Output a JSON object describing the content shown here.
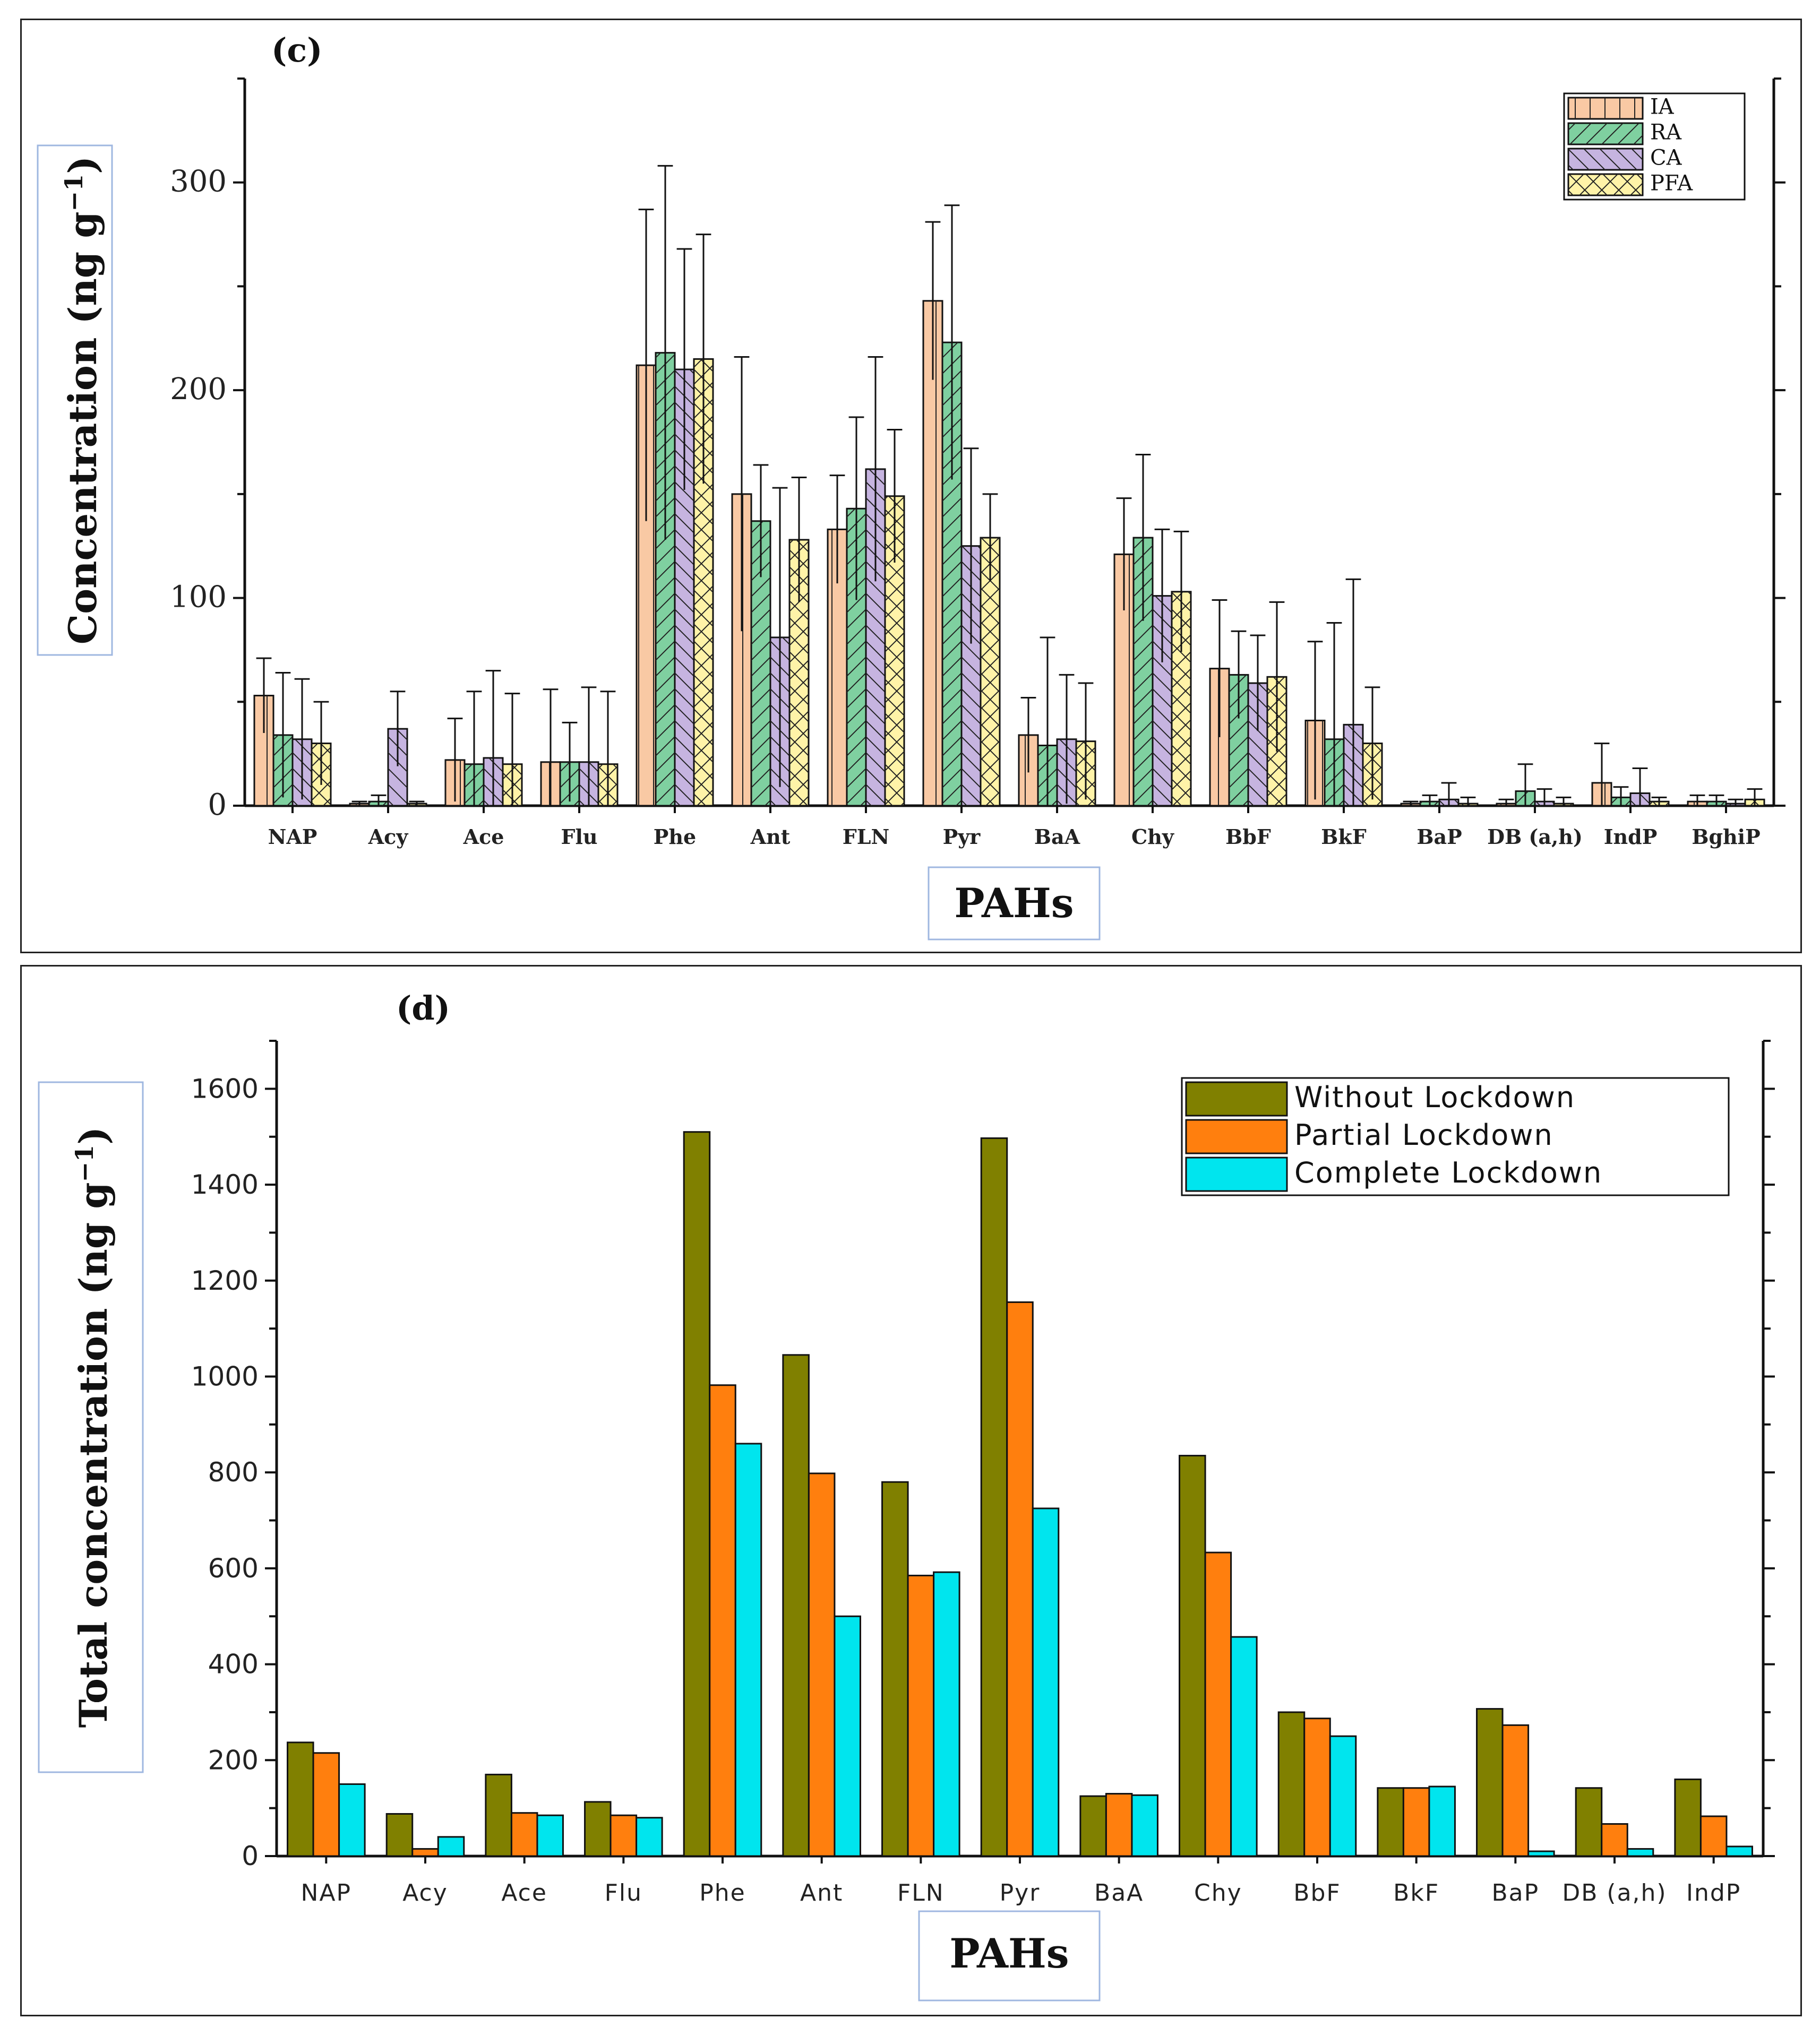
{
  "chart_data": [
    {
      "type": "bar",
      "panel_label": "(c)",
      "xlabel": "PAHs",
      "ylabel": "Concentration (ng g",
      "ylabel_sup": "−1",
      "ylabel_close": ")",
      "ylim": [
        0,
        350
      ],
      "yticks": [
        0,
        100,
        200,
        300
      ],
      "grid": false,
      "legend_position": "top-right",
      "error_bars": true,
      "categories": [
        "NAP",
        "Acy",
        "Ace",
        "Flu",
        "Phe",
        "Ant",
        "FLN",
        "Pyr",
        "BaA",
        "Chy",
        "BbF",
        "BkF",
        "BaP",
        "DB (a,h)",
        "IndP",
        "BghiP"
      ],
      "series": [
        {
          "name": "IA",
          "color": "#f9c9a4",
          "pattern": "vertical",
          "values": [
            53,
            1,
            22,
            21,
            212,
            150,
            133,
            243,
            34,
            121,
            66,
            41,
            1,
            1,
            11,
            2
          ],
          "errors": [
            18,
            1,
            20,
            35,
            75,
            66,
            26,
            38,
            18,
            27,
            33,
            38,
            1,
            2,
            19,
            3
          ]
        },
        {
          "name": "RA",
          "color": "#7fd0a0",
          "pattern": "forward-diagonal",
          "values": [
            34,
            2,
            20,
            21,
            218,
            137,
            143,
            223,
            29,
            129,
            63,
            32,
            2,
            7,
            4,
            2
          ],
          "errors": [
            30,
            3,
            35,
            19,
            90,
            27,
            44,
            66,
            52,
            40,
            21,
            56,
            3,
            13,
            5,
            3
          ]
        },
        {
          "name": "CA",
          "color": "#c6b4e0",
          "pattern": "back-diagonal",
          "values": [
            32,
            37,
            23,
            21,
            210,
            81,
            162,
            125,
            32,
            101,
            59,
            39,
            3,
            2,
            6,
            1
          ],
          "errors": [
            29,
            18,
            42,
            36,
            58,
            72,
            54,
            47,
            31,
            32,
            23,
            70,
            8,
            6,
            12,
            2
          ]
        },
        {
          "name": "PFA",
          "color": "#fff3a8",
          "pattern": "crosshatch",
          "values": [
            30,
            1,
            20,
            20,
            215,
            128,
            149,
            129,
            31,
            103,
            62,
            30,
            1,
            1,
            2,
            3
          ],
          "errors": [
            20,
            1,
            34,
            35,
            60,
            30,
            32,
            21,
            28,
            29,
            36,
            27,
            3,
            3,
            2,
            5
          ]
        }
      ]
    },
    {
      "type": "bar",
      "panel_label": "(d)",
      "xlabel": "PAHs",
      "ylabel": "Total concentration (ng g",
      "ylabel_sup": "−1",
      "ylabel_close": ")",
      "ylim": [
        0,
        1700
      ],
      "yticks": [
        0,
        200,
        400,
        600,
        800,
        1000,
        1200,
        1400,
        1600
      ],
      "grid": false,
      "legend_position": "top-right",
      "categories": [
        "NAP",
        "Acy",
        "Ace",
        "Flu",
        "Phe",
        "Ant",
        "FLN",
        "Pyr",
        "BaA",
        "Chy",
        "BbF",
        "BkF",
        "BaP",
        "DB (a,h)",
        "IndP"
      ],
      "series": [
        {
          "name": "Without Lockdown",
          "color": "#808000",
          "values": [
            237,
            88,
            170,
            113,
            1510,
            1045,
            780,
            1497,
            125,
            835,
            300,
            142,
            307,
            142,
            160
          ]
        },
        {
          "name": "Partial Lockdown",
          "color": "#ff7f0e",
          "values": [
            215,
            15,
            90,
            85,
            982,
            798,
            585,
            1155,
            130,
            633,
            287,
            142,
            273,
            67,
            83
          ]
        },
        {
          "name": "Complete Lockdown",
          "color": "#00e5ee",
          "values": [
            150,
            40,
            85,
            80,
            860,
            500,
            592,
            725,
            127,
            457,
            250,
            145,
            10,
            15,
            20
          ]
        }
      ]
    }
  ]
}
